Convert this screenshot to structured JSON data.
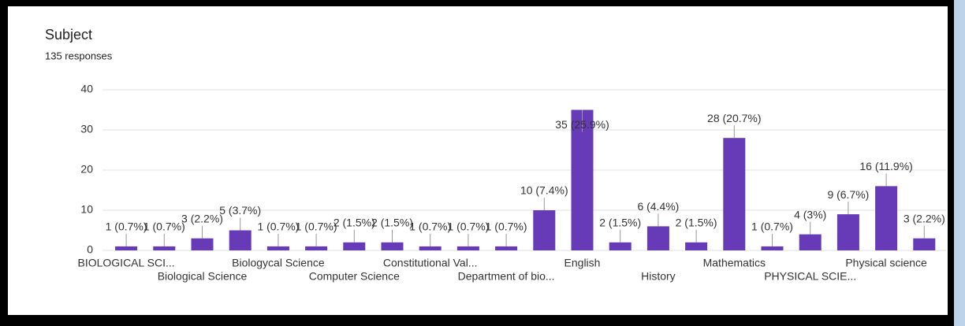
{
  "chart_data": {
    "type": "bar",
    "title": "Subject",
    "subtitle": "135 responses",
    "categories": [
      "BIOLOGICAL SCI...",
      null,
      "Biological Science",
      null,
      "Biologycal Science",
      null,
      "Computer Science",
      null,
      "Constitutional Val...",
      null,
      "Department of bio...",
      null,
      "English",
      null,
      "History",
      null,
      "Mathematics",
      null,
      "PHYSICAL SCIE...",
      null,
      "Physical science",
      null
    ],
    "values": [
      1,
      1,
      3,
      5,
      1,
      1,
      2,
      2,
      1,
      1,
      1,
      10,
      35,
      2,
      6,
      2,
      28,
      1,
      4,
      9,
      16,
      3
    ],
    "value_labels": [
      "1 (0.7%)",
      "1 (0.7%)",
      "3 (2.2%)",
      "5 (3.7%)",
      "1 (0.7%)",
      "1 (0.7%)",
      "2 (1.5%)",
      "2 (1.5%)",
      "1 (0.7%)",
      "1 (0.7%)",
      "1 (0.7%)",
      "10 (7.4%)",
      "35 (25.9%)",
      "2 (1.5%)",
      "6 (4.4%)",
      "2 (1.5%)",
      "28 (20.7%)",
      "1 (0.7%)",
      "4 (3%)",
      "9 (6.7%)",
      "16 (11.9%)",
      "3 (2.2%)"
    ],
    "color": "#673ab7",
    "ylim": [
      0,
      40
    ],
    "yticks": [
      0,
      10,
      20,
      30,
      40
    ],
    "grid": true
  }
}
